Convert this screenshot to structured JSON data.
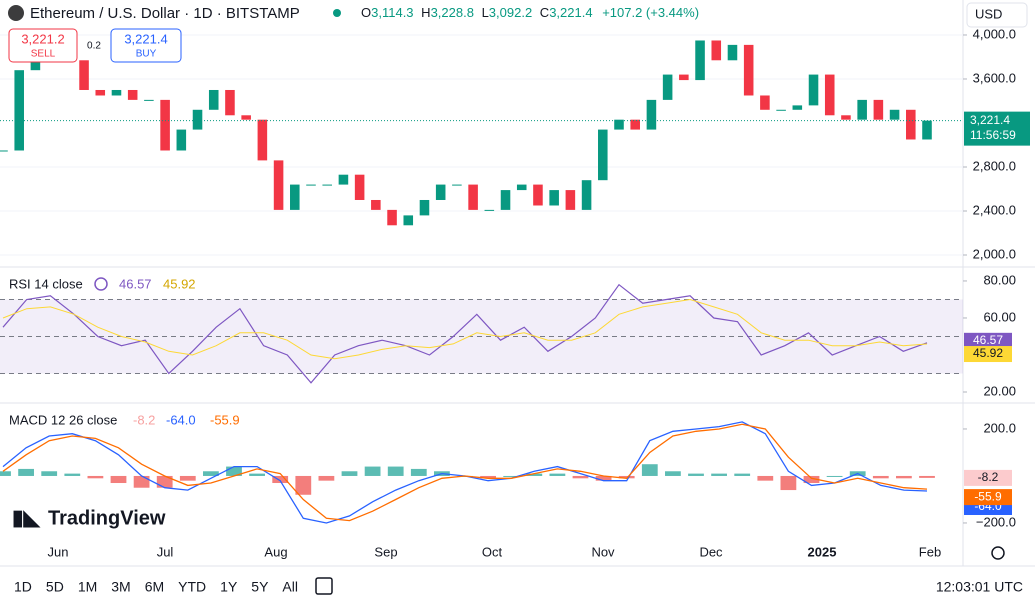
{
  "header": {
    "title": "Ethereum / U.S. Dollar · 1D · BITSTAMP",
    "ohlc": [
      {
        "key": "O",
        "value": "3,114.3"
      },
      {
        "key": "H",
        "value": "3,228.8"
      },
      {
        "key": "L",
        "value": "3,092.2"
      },
      {
        "key": "C",
        "value": "3,221.4"
      }
    ],
    "change": "+107.2 (+3.44%)",
    "currency": "USD"
  },
  "trade": {
    "sell_price": "3,221.2",
    "sell": "SELL",
    "spread": "0.2",
    "buy_price": "3,221.4",
    "buy": "BUY"
  },
  "price_panel": {
    "type": "candlestick",
    "values": [
      2950,
      3680,
      3770,
      3770,
      3770,
      3500,
      3450,
      3500,
      3410,
      3410,
      2950,
      3140,
      3320,
      3500,
      3270,
      3230,
      2860,
      2410,
      2640,
      2640,
      2640,
      2730,
      2500,
      2410,
      2270,
      2360,
      2500,
      2640,
      2640,
      2410,
      2410,
      2590,
      2640,
      2450,
      2590,
      2410,
      2680,
      3140,
      3230,
      3140,
      3410,
      3640,
      3590,
      3950,
      3770,
      3910,
      3450,
      3320,
      3320,
      3360,
      3640,
      3270,
      3230,
      3410,
      3230,
      3320,
      3050,
      3221.4
    ],
    "last_label": "3,221.4",
    "countdown": "11:56:59",
    "up_color": "#089981",
    "down_color": "#f23645",
    "ylim": [
      1909,
      4318
    ],
    "yticks": [
      {
        "value": 2000,
        "label": "2,000.0"
      },
      {
        "value": 2400,
        "label": "2,400.0"
      },
      {
        "value": 2800,
        "label": "2,800.0"
      },
      {
        "value": 3600,
        "label": "3,600.0"
      },
      {
        "value": 4000,
        "label": "4,000.0"
      }
    ],
    "grid": true
  },
  "rsi": {
    "title": "RSI 14 close",
    "ylim": [
      14.6,
      87
    ],
    "yticks": [
      {
        "value": 20,
        "label": "20.00"
      },
      {
        "value": 60,
        "label": "60.00"
      },
      {
        "value": 80,
        "label": "80.00"
      }
    ],
    "bands": [
      70,
      50,
      30
    ],
    "series": [
      {
        "name": "RSI",
        "color": "#7e57c2",
        "values": [
          55,
          70,
          72,
          62,
          50,
          45,
          48,
          30,
          42,
          55,
          65,
          45,
          40,
          25,
          40,
          45,
          48,
          45,
          40,
          50,
          62,
          48,
          55,
          42,
          50,
          60,
          78,
          68,
          70,
          72,
          60,
          58,
          40,
          45,
          52,
          40,
          45,
          50,
          42,
          46.57
        ]
      },
      {
        "name": "RSI MA",
        "color": "#fdd835",
        "values": [
          60,
          65,
          66,
          62,
          55,
          50,
          47,
          42,
          40,
          45,
          52,
          52,
          48,
          40,
          38,
          40,
          43,
          45,
          44,
          46,
          52,
          50,
          52,
          48,
          48,
          52,
          62,
          66,
          68,
          70,
          66,
          62,
          52,
          48,
          48,
          45,
          45,
          47,
          45,
          45.92
        ]
      }
    ]
  },
  "macd": {
    "title": "MACD 12 26 close",
    "ylim": [
      -264,
      302
    ],
    "yticks": [
      {
        "value": -200,
        "label": "−200.0"
      },
      {
        "value": 200,
        "label": "200.0"
      }
    ],
    "histogram": {
      "values": [
        20,
        30,
        20,
        10,
        -10,
        -30,
        -50,
        -50,
        -20,
        20,
        40,
        10,
        -30,
        -80,
        -20,
        20,
        40,
        40,
        30,
        20,
        0,
        -10,
        0,
        10,
        10,
        -10,
        -20,
        -10,
        50,
        20,
        10,
        10,
        10,
        -20,
        -60,
        -30,
        0,
        20,
        -10,
        -10,
        -8.2
      ],
      "last_label": "-8.2"
    },
    "series": [
      {
        "name": "MACD",
        "color": "#2962ff",
        "values": [
          40,
          120,
          170,
          180,
          150,
          90,
          0,
          -50,
          -60,
          -10,
          40,
          40,
          -20,
          -180,
          -200,
          -170,
          -110,
          -60,
          -20,
          10,
          0,
          -20,
          -10,
          20,
          40,
          10,
          -20,
          -20,
          150,
          190,
          200,
          210,
          230,
          180,
          20,
          -40,
          -30,
          10,
          -40,
          -60,
          -64
        ],
        "last_label": "-64.0"
      },
      {
        "name": "Signal",
        "color": "#ff6d00",
        "values": [
          20,
          90,
          150,
          170,
          160,
          120,
          50,
          0,
          -40,
          -30,
          0,
          30,
          10,
          -100,
          -180,
          -190,
          -150,
          -100,
          -50,
          -10,
          0,
          -10,
          -10,
          10,
          30,
          20,
          0,
          -10,
          100,
          170,
          190,
          200,
          220,
          200,
          80,
          -10,
          -30,
          -10,
          -30,
          -50,
          -55.9
        ],
        "last_label": "-55.9"
      }
    ]
  },
  "time_axis": [
    "Jun",
    "Jul",
    "Aug",
    "Sep",
    "Oct",
    "Nov",
    "Dec",
    "2025",
    "Feb"
  ],
  "brand": "TradingView",
  "toolbar": {
    "ranges": [
      "1D",
      "5D",
      "1M",
      "3M",
      "6M",
      "YTD",
      "1Y",
      "5Y",
      "All"
    ],
    "clock": "12:03:01 UTC"
  }
}
